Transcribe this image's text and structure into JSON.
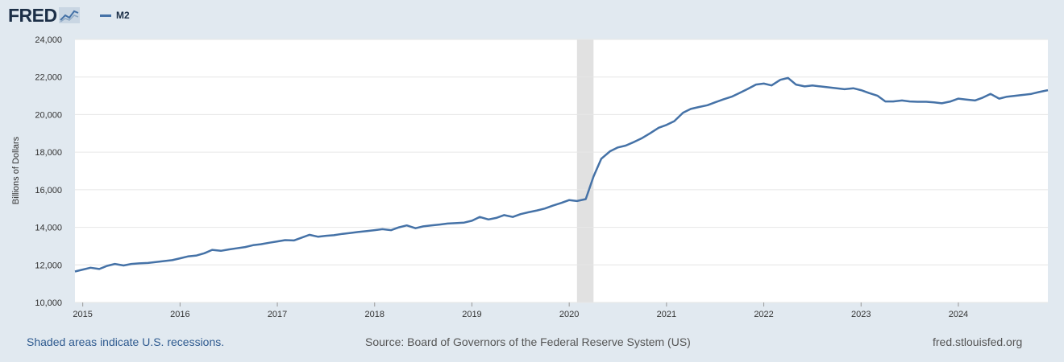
{
  "header": {
    "logo_text": "FRED",
    "legend_label": "M2"
  },
  "colors": {
    "series": "#4572a7",
    "background": "#e1e9f0",
    "plot": "#ffffff",
    "recession": "#e1e1e1",
    "grid": "#e6e6e6"
  },
  "footer": {
    "recession_note": "Shaded areas indicate U.S. recessions.",
    "source": "Source: Board of Governors of the Federal Reserve System (US)",
    "url": "fred.stlouisfed.org"
  },
  "chart_data": {
    "type": "line",
    "ylabel": "Billions of Dollars",
    "ylim": [
      10000,
      24000
    ],
    "yticks": [
      10000,
      12000,
      14000,
      16000,
      18000,
      20000,
      22000,
      24000
    ],
    "ytick_labels": [
      "10,000",
      "12,000",
      "14,000",
      "16,000",
      "18,000",
      "20,000",
      "22,000",
      "24,000"
    ],
    "xlim": [
      2014.92,
      2024.92
    ],
    "xticks": [
      2015,
      2016,
      2017,
      2018,
      2019,
      2020,
      2021,
      2022,
      2023,
      2024
    ],
    "xtick_labels": [
      "2015",
      "2016",
      "2017",
      "2018",
      "2019",
      "2020",
      "2021",
      "2022",
      "2023",
      "2024"
    ],
    "grid": true,
    "recessions": [
      [
        2020.08,
        2020.25
      ]
    ],
    "series": [
      {
        "name": "M2",
        "x": [
          2014.92,
          2015.0,
          2015.08,
          2015.17,
          2015.25,
          2015.33,
          2015.42,
          2015.5,
          2015.58,
          2015.67,
          2015.75,
          2015.83,
          2015.92,
          2016.0,
          2016.08,
          2016.17,
          2016.25,
          2016.33,
          2016.42,
          2016.5,
          2016.58,
          2016.67,
          2016.75,
          2016.83,
          2016.92,
          2017.0,
          2017.08,
          2017.17,
          2017.25,
          2017.33,
          2017.42,
          2017.5,
          2017.58,
          2017.67,
          2017.75,
          2017.83,
          2017.92,
          2018.0,
          2018.08,
          2018.17,
          2018.25,
          2018.33,
          2018.42,
          2018.5,
          2018.58,
          2018.67,
          2018.75,
          2018.83,
          2018.92,
          2019.0,
          2019.08,
          2019.17,
          2019.25,
          2019.33,
          2019.42,
          2019.5,
          2019.58,
          2019.67,
          2019.75,
          2019.83,
          2019.92,
          2020.0,
          2020.08,
          2020.17,
          2020.25,
          2020.33,
          2020.42,
          2020.5,
          2020.58,
          2020.67,
          2020.75,
          2020.83,
          2020.92,
          2021.0,
          2021.08,
          2021.17,
          2021.25,
          2021.33,
          2021.42,
          2021.5,
          2021.58,
          2021.67,
          2021.75,
          2021.83,
          2021.92,
          2022.0,
          2022.08,
          2022.17,
          2022.25,
          2022.33,
          2022.42,
          2022.5,
          2022.58,
          2022.67,
          2022.75,
          2022.83,
          2022.92,
          2023.0,
          2023.08,
          2023.17,
          2023.25,
          2023.33,
          2023.42,
          2023.5,
          2023.58,
          2023.67,
          2023.75,
          2023.83,
          2023.92,
          2024.0,
          2024.08,
          2024.17,
          2024.25,
          2024.33,
          2024.42,
          2024.5,
          2024.58,
          2024.67,
          2024.75,
          2024.83,
          2024.92
        ],
        "y": [
          11650,
          11750,
          11850,
          11780,
          11950,
          12050,
          11970,
          12050,
          12080,
          12100,
          12150,
          12200,
          12250,
          12350,
          12450,
          12500,
          12620,
          12800,
          12750,
          12820,
          12880,
          12950,
          13050,
          13100,
          13180,
          13250,
          13320,
          13300,
          13450,
          13600,
          13500,
          13550,
          13580,
          13650,
          13700,
          13750,
          13800,
          13850,
          13900,
          13850,
          14000,
          14100,
          13950,
          14050,
          14100,
          14150,
          14200,
          14220,
          14250,
          14350,
          14550,
          14420,
          14500,
          14650,
          14550,
          14700,
          14800,
          14900,
          15000,
          15150,
          15300,
          15450,
          15400,
          15500,
          16700,
          17650,
          18050,
          18250,
          18350,
          18550,
          18750,
          19000,
          19300,
          19450,
          19650,
          20100,
          20300,
          20400,
          20500,
          20650,
          20800,
          20950,
          21150,
          21350,
          21600,
          21650,
          21550,
          21850,
          21950,
          21600,
          21500,
          21550,
          21500,
          21450,
          21400,
          21350,
          21400,
          21300,
          21150,
          21000,
          20700,
          20700,
          20750,
          20700,
          20680,
          20680,
          20650,
          20600,
          20700,
          20850,
          20800,
          20750,
          20900,
          21100,
          20850,
          20950,
          21000,
          21050,
          21100,
          21200,
          21300
        ]
      }
    ]
  }
}
